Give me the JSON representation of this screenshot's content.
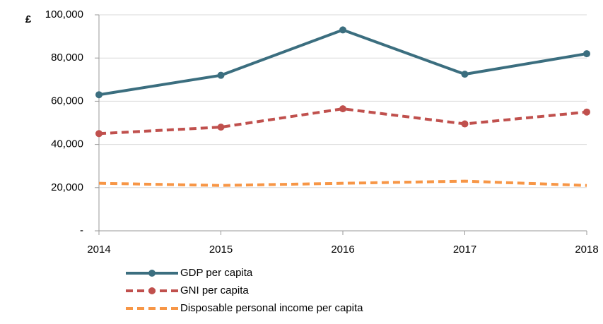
{
  "chart_data": {
    "type": "line",
    "y_label": "£",
    "categories": [
      "2014",
      "2015",
      "2016",
      "2017",
      "2018"
    ],
    "series": [
      {
        "name": "GDP per capita",
        "color": "#3b6e7f",
        "dash": "solid",
        "marker": "circle",
        "values": [
          63000,
          72000,
          93000,
          72500,
          82000
        ]
      },
      {
        "name": "GNI per capita",
        "color": "#c0504d",
        "dash": "dashed",
        "marker": "circle",
        "values": [
          45000,
          48000,
          56500,
          49500,
          55000
        ]
      },
      {
        "name": "Disposable personal income per capita",
        "color": "#f79646",
        "dash": "dashed",
        "marker": "none",
        "values": [
          22000,
          21000,
          22000,
          23000,
          21000
        ]
      }
    ],
    "ylim": [
      0,
      100000
    ],
    "yticks": [
      {
        "value": 0,
        "label": "-"
      },
      {
        "value": 20000,
        "label": "20,000"
      },
      {
        "value": 40000,
        "label": "40,000"
      },
      {
        "value": 60000,
        "label": "60,000"
      },
      {
        "value": 80000,
        "label": "80,000"
      },
      {
        "value": 100000,
        "label": "100,000"
      }
    ],
    "grid": true,
    "legend": "bottom"
  }
}
